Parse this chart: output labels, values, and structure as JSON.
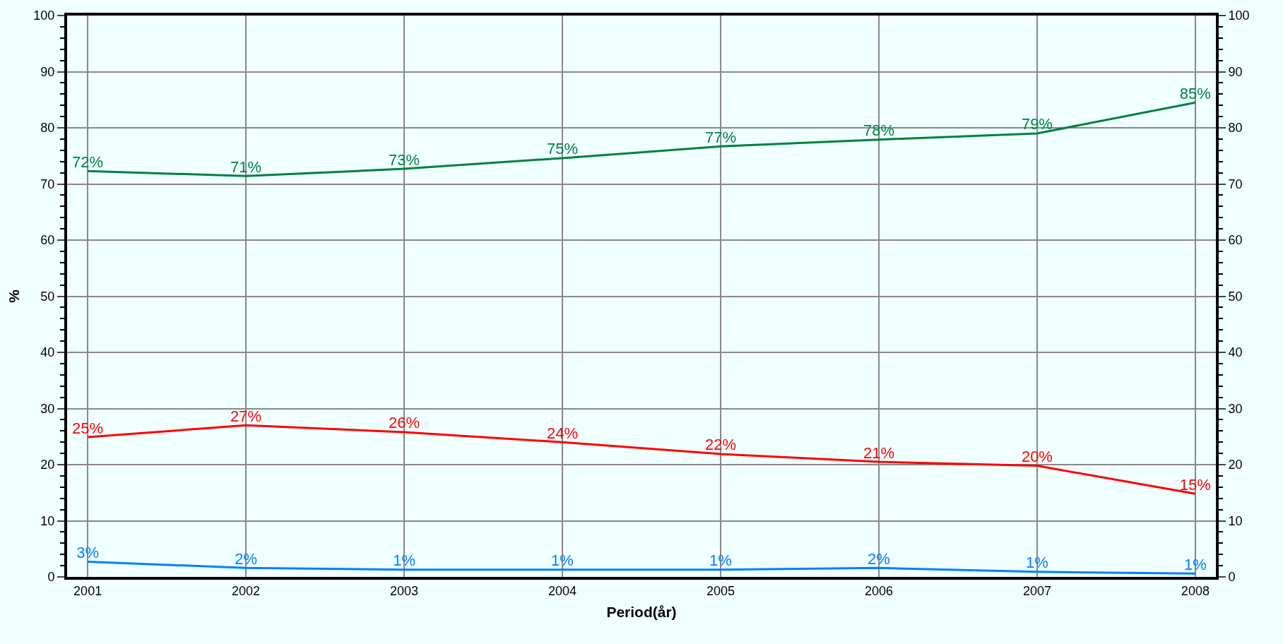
{
  "chart_data": {
    "type": "line",
    "xlabel": "Period(år)",
    "ylabel": "%",
    "categories": [
      "2001",
      "2002",
      "2003",
      "2004",
      "2005",
      "2006",
      "2007",
      "2008"
    ],
    "series": [
      {
        "color": "#008040",
        "values": [
          72.3,
          71.4,
          72.7,
          74.6,
          76.7,
          77.9,
          79.0,
          84.5
        ],
        "value_labels": [
          "72%",
          "71%",
          "73%",
          "75%",
          "77%",
          "78%",
          "79%",
          "85%"
        ]
      },
      {
        "color": "#ff0000",
        "values": [
          24.9,
          27.0,
          25.8,
          24.0,
          21.9,
          20.5,
          19.8,
          14.8
        ],
        "value_labels": [
          "25%",
          "27%",
          "26%",
          "24%",
          "22%",
          "21%",
          "20%",
          "15%"
        ]
      },
      {
        "color": "#0080ff",
        "values": [
          2.7,
          1.6,
          1.3,
          1.3,
          1.3,
          1.6,
          0.9,
          0.6
        ],
        "value_labels": [
          "3%",
          "2%",
          "1%",
          "1%",
          "1%",
          "2%",
          "1%",
          "1%"
        ]
      }
    ],
    "ylim": [
      0,
      100
    ],
    "yticks": [
      0,
      10,
      20,
      30,
      40,
      50,
      60,
      70,
      80,
      90,
      100
    ],
    "y2lim": [
      0,
      100
    ],
    "y2ticks": [
      0,
      10,
      20,
      30,
      40,
      50,
      60,
      70,
      80,
      90,
      100
    ],
    "grid": true,
    "marker": "none",
    "line_style": "solid"
  }
}
